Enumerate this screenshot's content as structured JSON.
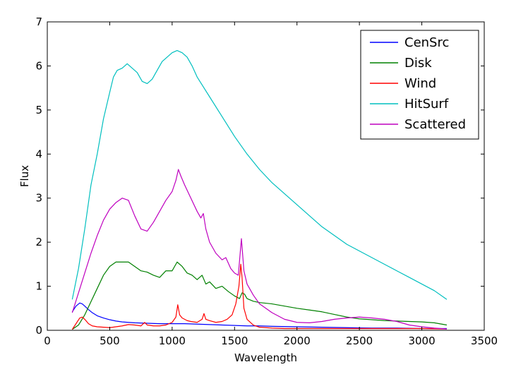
{
  "chart_data": {
    "type": "line",
    "title": "",
    "xlabel": "Wavelength",
    "ylabel": "Flux",
    "xlim": [
      0,
      3500
    ],
    "ylim": [
      0,
      7
    ],
    "xticks": [
      0,
      500,
      1000,
      1500,
      2000,
      2500,
      3000,
      3500
    ],
    "yticks": [
      0,
      1,
      2,
      3,
      4,
      5,
      6,
      7
    ],
    "xtick_labels": [
      "0",
      "500",
      "1000",
      "1500",
      "2000",
      "2500",
      "3000",
      "3500"
    ],
    "ytick_labels": [
      "0",
      "1",
      "2",
      "3",
      "4",
      "5",
      "6",
      "7"
    ],
    "grid": false,
    "legend_position": "top-right",
    "series": [
      {
        "name": "CenSrc",
        "color": "#0000ff",
        "x": [
          200,
          230,
          260,
          280,
          300,
          330,
          360,
          400,
          450,
          500,
          550,
          600,
          650,
          700,
          800,
          900,
          1000,
          1100,
          1200,
          1300,
          1400,
          1500,
          1600,
          1700,
          1800,
          2000,
          2200,
          2400,
          2600,
          2800,
          3000,
          3200
        ],
        "y": [
          0.42,
          0.55,
          0.62,
          0.6,
          0.55,
          0.47,
          0.4,
          0.33,
          0.28,
          0.24,
          0.21,
          0.19,
          0.18,
          0.17,
          0.16,
          0.15,
          0.15,
          0.15,
          0.14,
          0.13,
          0.12,
          0.11,
          0.1,
          0.1,
          0.09,
          0.08,
          0.07,
          0.06,
          0.05,
          0.05,
          0.04,
          0.04
        ]
      },
      {
        "name": "Disk",
        "color": "#008000",
        "x": [
          200,
          250,
          300,
          350,
          400,
          450,
          500,
          550,
          600,
          650,
          700,
          750,
          800,
          850,
          900,
          950,
          1000,
          1040,
          1080,
          1120,
          1160,
          1200,
          1240,
          1270,
          1300,
          1350,
          1400,
          1450,
          1500,
          1540,
          1560,
          1580,
          1600,
          1650,
          1700,
          1800,
          1900,
          2000,
          2100,
          2200,
          2300,
          2400,
          2500,
          2600,
          2700,
          2800,
          2900,
          3000,
          3100,
          3200
        ],
        "y": [
          0.02,
          0.12,
          0.35,
          0.65,
          0.95,
          1.25,
          1.45,
          1.55,
          1.55,
          1.55,
          1.45,
          1.35,
          1.32,
          1.25,
          1.2,
          1.35,
          1.35,
          1.55,
          1.45,
          1.3,
          1.25,
          1.15,
          1.25,
          1.05,
          1.1,
          0.95,
          1.0,
          0.88,
          0.78,
          0.72,
          0.85,
          0.82,
          0.72,
          0.66,
          0.63,
          0.6,
          0.55,
          0.5,
          0.46,
          0.42,
          0.36,
          0.3,
          0.26,
          0.24,
          0.22,
          0.21,
          0.2,
          0.19,
          0.17,
          0.12
        ]
      },
      {
        "name": "Wind",
        "color": "#ff0000",
        "x": [
          200,
          230,
          260,
          280,
          300,
          330,
          360,
          400,
          450,
          500,
          550,
          600,
          650,
          700,
          750,
          780,
          800,
          850,
          900,
          950,
          1000,
          1030,
          1045,
          1060,
          1080,
          1120,
          1150,
          1200,
          1240,
          1255,
          1270,
          1300,
          1350,
          1400,
          1440,
          1480,
          1510,
          1535,
          1550,
          1560,
          1575,
          1600,
          1650,
          1700,
          1800,
          1900,
          2000,
          2200,
          2400,
          2600,
          2800,
          3000,
          3200
        ],
        "y": [
          0.02,
          0.15,
          0.28,
          0.3,
          0.25,
          0.15,
          0.1,
          0.08,
          0.07,
          0.06,
          0.08,
          0.1,
          0.13,
          0.12,
          0.1,
          0.18,
          0.12,
          0.1,
          0.1,
          0.12,
          0.18,
          0.3,
          0.58,
          0.35,
          0.28,
          0.22,
          0.2,
          0.18,
          0.25,
          0.38,
          0.25,
          0.22,
          0.18,
          0.2,
          0.25,
          0.35,
          0.6,
          1.0,
          1.5,
          1.2,
          0.5,
          0.25,
          0.12,
          0.07,
          0.05,
          0.04,
          0.04,
          0.04,
          0.04,
          0.04,
          0.04,
          0.04,
          0.03
        ]
      },
      {
        "name": "HitSurf",
        "color": "#00bfbf",
        "x": [
          200,
          250,
          300,
          350,
          400,
          450,
          500,
          530,
          560,
          600,
          640,
          680,
          720,
          760,
          800,
          840,
          880,
          920,
          960,
          1000,
          1040,
          1080,
          1120,
          1160,
          1200,
          1300,
          1400,
          1500,
          1600,
          1700,
          1800,
          1900,
          2000,
          2100,
          2200,
          2300,
          2400,
          2500,
          2600,
          2700,
          2800,
          2900,
          3000,
          3100,
          3200
        ],
        "y": [
          0.7,
          1.4,
          2.3,
          3.3,
          4.0,
          4.8,
          5.4,
          5.75,
          5.9,
          5.95,
          6.05,
          5.95,
          5.85,
          5.65,
          5.6,
          5.7,
          5.9,
          6.1,
          6.2,
          6.3,
          6.35,
          6.3,
          6.2,
          6.0,
          5.75,
          5.3,
          4.85,
          4.4,
          4.0,
          3.65,
          3.35,
          3.1,
          2.85,
          2.6,
          2.35,
          2.15,
          1.95,
          1.8,
          1.65,
          1.5,
          1.35,
          1.2,
          1.05,
          0.9,
          0.7
        ]
      },
      {
        "name": "Scattered",
        "color": "#bf00bf",
        "x": [
          200,
          250,
          300,
          350,
          400,
          450,
          500,
          550,
          600,
          650,
          700,
          750,
          800,
          850,
          900,
          950,
          1000,
          1030,
          1050,
          1070,
          1100,
          1150,
          1200,
          1230,
          1250,
          1270,
          1300,
          1350,
          1400,
          1430,
          1470,
          1500,
          1530,
          1555,
          1575,
          1600,
          1650,
          1700,
          1800,
          1900,
          2000,
          2100,
          2200,
          2300,
          2400,
          2500,
          2600,
          2700,
          2800,
          2900,
          3000,
          3100,
          3200
        ],
        "y": [
          0.4,
          0.85,
          1.3,
          1.75,
          2.15,
          2.5,
          2.75,
          2.9,
          3.0,
          2.95,
          2.6,
          2.3,
          2.25,
          2.45,
          2.7,
          2.95,
          3.15,
          3.4,
          3.65,
          3.5,
          3.3,
          3.0,
          2.7,
          2.55,
          2.65,
          2.3,
          2.0,
          1.75,
          1.6,
          1.65,
          1.4,
          1.3,
          1.25,
          2.08,
          1.35,
          1.05,
          0.8,
          0.6,
          0.4,
          0.25,
          0.18,
          0.17,
          0.2,
          0.25,
          0.28,
          0.3,
          0.28,
          0.25,
          0.2,
          0.12,
          0.08,
          0.05,
          0.03
        ]
      }
    ]
  }
}
